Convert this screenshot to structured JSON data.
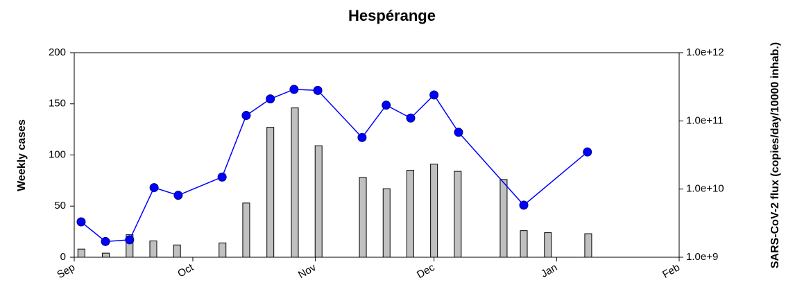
{
  "chart_data": {
    "type": "bar-line",
    "title": "Hespérange",
    "y_label": "Weekly cases",
    "y2_label": "SARS-CoV-2 flux (copies/day/10000 inhab.)",
    "xlim": [
      0,
      153
    ],
    "xticks": [
      {
        "value": 0,
        "label": "Sep"
      },
      {
        "value": 30,
        "label": "Oct"
      },
      {
        "value": 61,
        "label": "Nov"
      },
      {
        "value": 91,
        "label": "Dec"
      },
      {
        "value": 122,
        "label": "Jan"
      },
      {
        "value": 153,
        "label": "Feb"
      }
    ],
    "ylim": [
      0,
      200
    ],
    "yticks": [
      0,
      50,
      100,
      150,
      200
    ],
    "y2lim": [
      1000000000,
      1000000000000
    ],
    "y2ticks": [
      {
        "value": 1000000000,
        "label": "1.0e+9"
      },
      {
        "value": 10000000000,
        "label": "1.0e+10"
      },
      {
        "value": 100000000000,
        "label": "1.0e+11"
      },
      {
        "value": 1000000000000,
        "label": "1.0e+12"
      }
    ],
    "y2_log": true,
    "series": [
      {
        "type": "bar",
        "color": "#c0c0c0",
        "x": [
          1.8,
          8,
          14,
          20,
          26,
          37.5,
          43.5,
          49.6,
          55.8,
          61.8,
          73,
          79,
          85,
          91,
          97,
          108.6,
          113.7,
          119.8,
          130
        ],
        "values": [
          8,
          4,
          22,
          16,
          12,
          14,
          53,
          127,
          146,
          109,
          78,
          67,
          85,
          91,
          84,
          76,
          26,
          24,
          23
        ]
      },
      {
        "type": "line",
        "axis": "y2",
        "color": "#0000ff",
        "x": [
          1.75,
          7.9,
          14,
          20.2,
          26.3,
          37.4,
          43.5,
          49.6,
          55.6,
          61.6,
          72.8,
          78.9,
          85.1,
          91,
          97.2,
          113.7,
          129.8
        ],
        "values": [
          3300000000,
          1700000000,
          1800000000,
          10500000000,
          8100000000,
          15000000000,
          120000000000,
          210000000000,
          290000000000,
          280000000000,
          57000000000,
          170000000000,
          110000000000,
          240000000000,
          68000000000,
          5800000000,
          35000000000
        ]
      }
    ]
  }
}
